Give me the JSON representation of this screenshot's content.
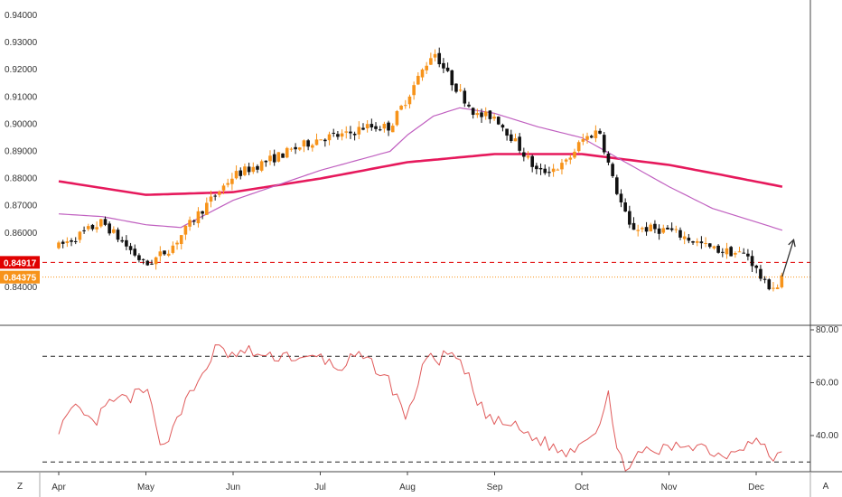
{
  "colors": {
    "up": "#f7931a",
    "down": "#111111",
    "ma_slow": "#e6195c",
    "ma_fast": "#c060c0",
    "rsi": "#e05a5a",
    "level_red": "#e00000",
    "level_orange": "#f7931a",
    "grid_border": "#444444"
  },
  "chart_data": [
    {
      "type": "candlestick",
      "title": "",
      "xlabel": "",
      "ylabel": "",
      "x_ticks": [
        "Apr",
        "May",
        "Jun",
        "Jul",
        "Aug",
        "Sep",
        "Oct",
        "Nov",
        "Dec"
      ],
      "y_ticks": [
        "0.84000",
        "0.85000",
        "0.86000",
        "0.87000",
        "0.88000",
        "0.89000",
        "0.90000",
        "0.91000",
        "0.92000",
        "0.93000",
        "0.94000"
      ],
      "ylim": [
        0.836,
        0.941
      ],
      "xlim_months": [
        0,
        8.4
      ],
      "close_path": [
        [
          0,
          0.855
        ],
        [
          0.5,
          0.864
        ],
        [
          1.0,
          0.848
        ],
        [
          1.3,
          0.855
        ],
        [
          1.6,
          0.867
        ],
        [
          2.0,
          0.881
        ],
        [
          2.5,
          0.888
        ],
        [
          3.0,
          0.895
        ],
        [
          3.3,
          0.896
        ],
        [
          3.5,
          0.899
        ],
        [
          3.8,
          0.899
        ],
        [
          4.0,
          0.91
        ],
        [
          4.3,
          0.927
        ],
        [
          4.5,
          0.916
        ],
        [
          4.8,
          0.903
        ],
        [
          5.0,
          0.903
        ],
        [
          5.2,
          0.895
        ],
        [
          5.5,
          0.882
        ],
        [
          5.8,
          0.885
        ],
        [
          6.0,
          0.894
        ],
        [
          6.2,
          0.898
        ],
        [
          6.35,
          0.88
        ],
        [
          6.55,
          0.862
        ],
        [
          7.0,
          0.861
        ],
        [
          7.5,
          0.854
        ],
        [
          7.9,
          0.852
        ],
        [
          8.1,
          0.841
        ],
        [
          8.25,
          0.84
        ],
        [
          8.3,
          0.8438
        ]
      ],
      "ma_slow": [
        [
          0,
          0.879
        ],
        [
          1.0,
          0.874
        ],
        [
          2.0,
          0.875
        ],
        [
          3.0,
          0.88
        ],
        [
          4.0,
          0.886
        ],
        [
          5.0,
          0.889
        ],
        [
          6.0,
          0.889
        ],
        [
          6.5,
          0.887
        ],
        [
          7.0,
          0.885
        ],
        [
          7.5,
          0.882
        ],
        [
          8.3,
          0.877
        ]
      ],
      "ma_fast": [
        [
          0,
          0.867
        ],
        [
          0.5,
          0.866
        ],
        [
          1.0,
          0.863
        ],
        [
          1.4,
          0.862
        ],
        [
          2.0,
          0.872
        ],
        [
          3.0,
          0.883
        ],
        [
          3.8,
          0.89
        ],
        [
          4.0,
          0.896
        ],
        [
          4.3,
          0.903
        ],
        [
          4.6,
          0.906
        ],
        [
          5.0,
          0.904
        ],
        [
          5.5,
          0.899
        ],
        [
          6.0,
          0.895
        ],
        [
          6.5,
          0.886
        ],
        [
          7.0,
          0.877
        ],
        [
          7.5,
          0.869
        ],
        [
          8.3,
          0.861
        ]
      ],
      "levels": [
        {
          "label": "0.84917",
          "value": 0.84917,
          "style": "dashed",
          "color": "red"
        },
        {
          "label": "0.84375",
          "value": 0.84375,
          "style": "dotted",
          "color": "orange"
        }
      ],
      "annotation": {
        "type": "arrow",
        "from": [
          8.3,
          0.844
        ],
        "to": [
          8.43,
          0.8575
        ]
      }
    },
    {
      "type": "line",
      "title": "",
      "xlabel": "",
      "ylabel": "",
      "y_ticks": [
        "40.00",
        "60.00",
        "80.00"
      ],
      "ylim": [
        27,
        80
      ],
      "reference_lines": [
        70,
        30
      ],
      "rsi_path": [
        [
          0,
          43
        ],
        [
          0.2,
          50
        ],
        [
          0.4,
          44
        ],
        [
          0.6,
          53
        ],
        [
          0.8,
          54
        ],
        [
          1.0,
          57
        ],
        [
          1.1,
          48
        ],
        [
          1.2,
          34
        ],
        [
          1.35,
          47
        ],
        [
          1.6,
          60
        ],
        [
          1.8,
          73
        ],
        [
          2.0,
          70
        ],
        [
          2.2,
          72
        ],
        [
          2.4,
          69
        ],
        [
          2.6,
          71
        ],
        [
          2.8,
          68
        ],
        [
          3.0,
          70
        ],
        [
          3.2,
          65
        ],
        [
          3.4,
          70
        ],
        [
          3.6,
          67
        ],
        [
          3.8,
          60
        ],
        [
          4.0,
          46
        ],
        [
          4.2,
          70
        ],
        [
          4.3,
          68
        ],
        [
          4.5,
          71
        ],
        [
          4.7,
          62
        ],
        [
          4.8,
          52
        ],
        [
          5.0,
          45
        ],
        [
          5.2,
          44
        ],
        [
          5.4,
          40
        ],
        [
          5.6,
          37
        ],
        [
          5.8,
          33
        ],
        [
          6.0,
          38
        ],
        [
          6.2,
          44
        ],
        [
          6.3,
          58
        ],
        [
          6.4,
          33
        ],
        [
          6.5,
          29
        ],
        [
          6.7,
          33
        ],
        [
          7.0,
          35
        ],
        [
          7.2,
          37
        ],
        [
          7.4,
          36
        ],
        [
          7.6,
          32
        ],
        [
          7.8,
          36
        ],
        [
          8.0,
          38
        ],
        [
          8.1,
          35
        ],
        [
          8.2,
          31
        ],
        [
          8.3,
          34
        ]
      ]
    }
  ]
}
